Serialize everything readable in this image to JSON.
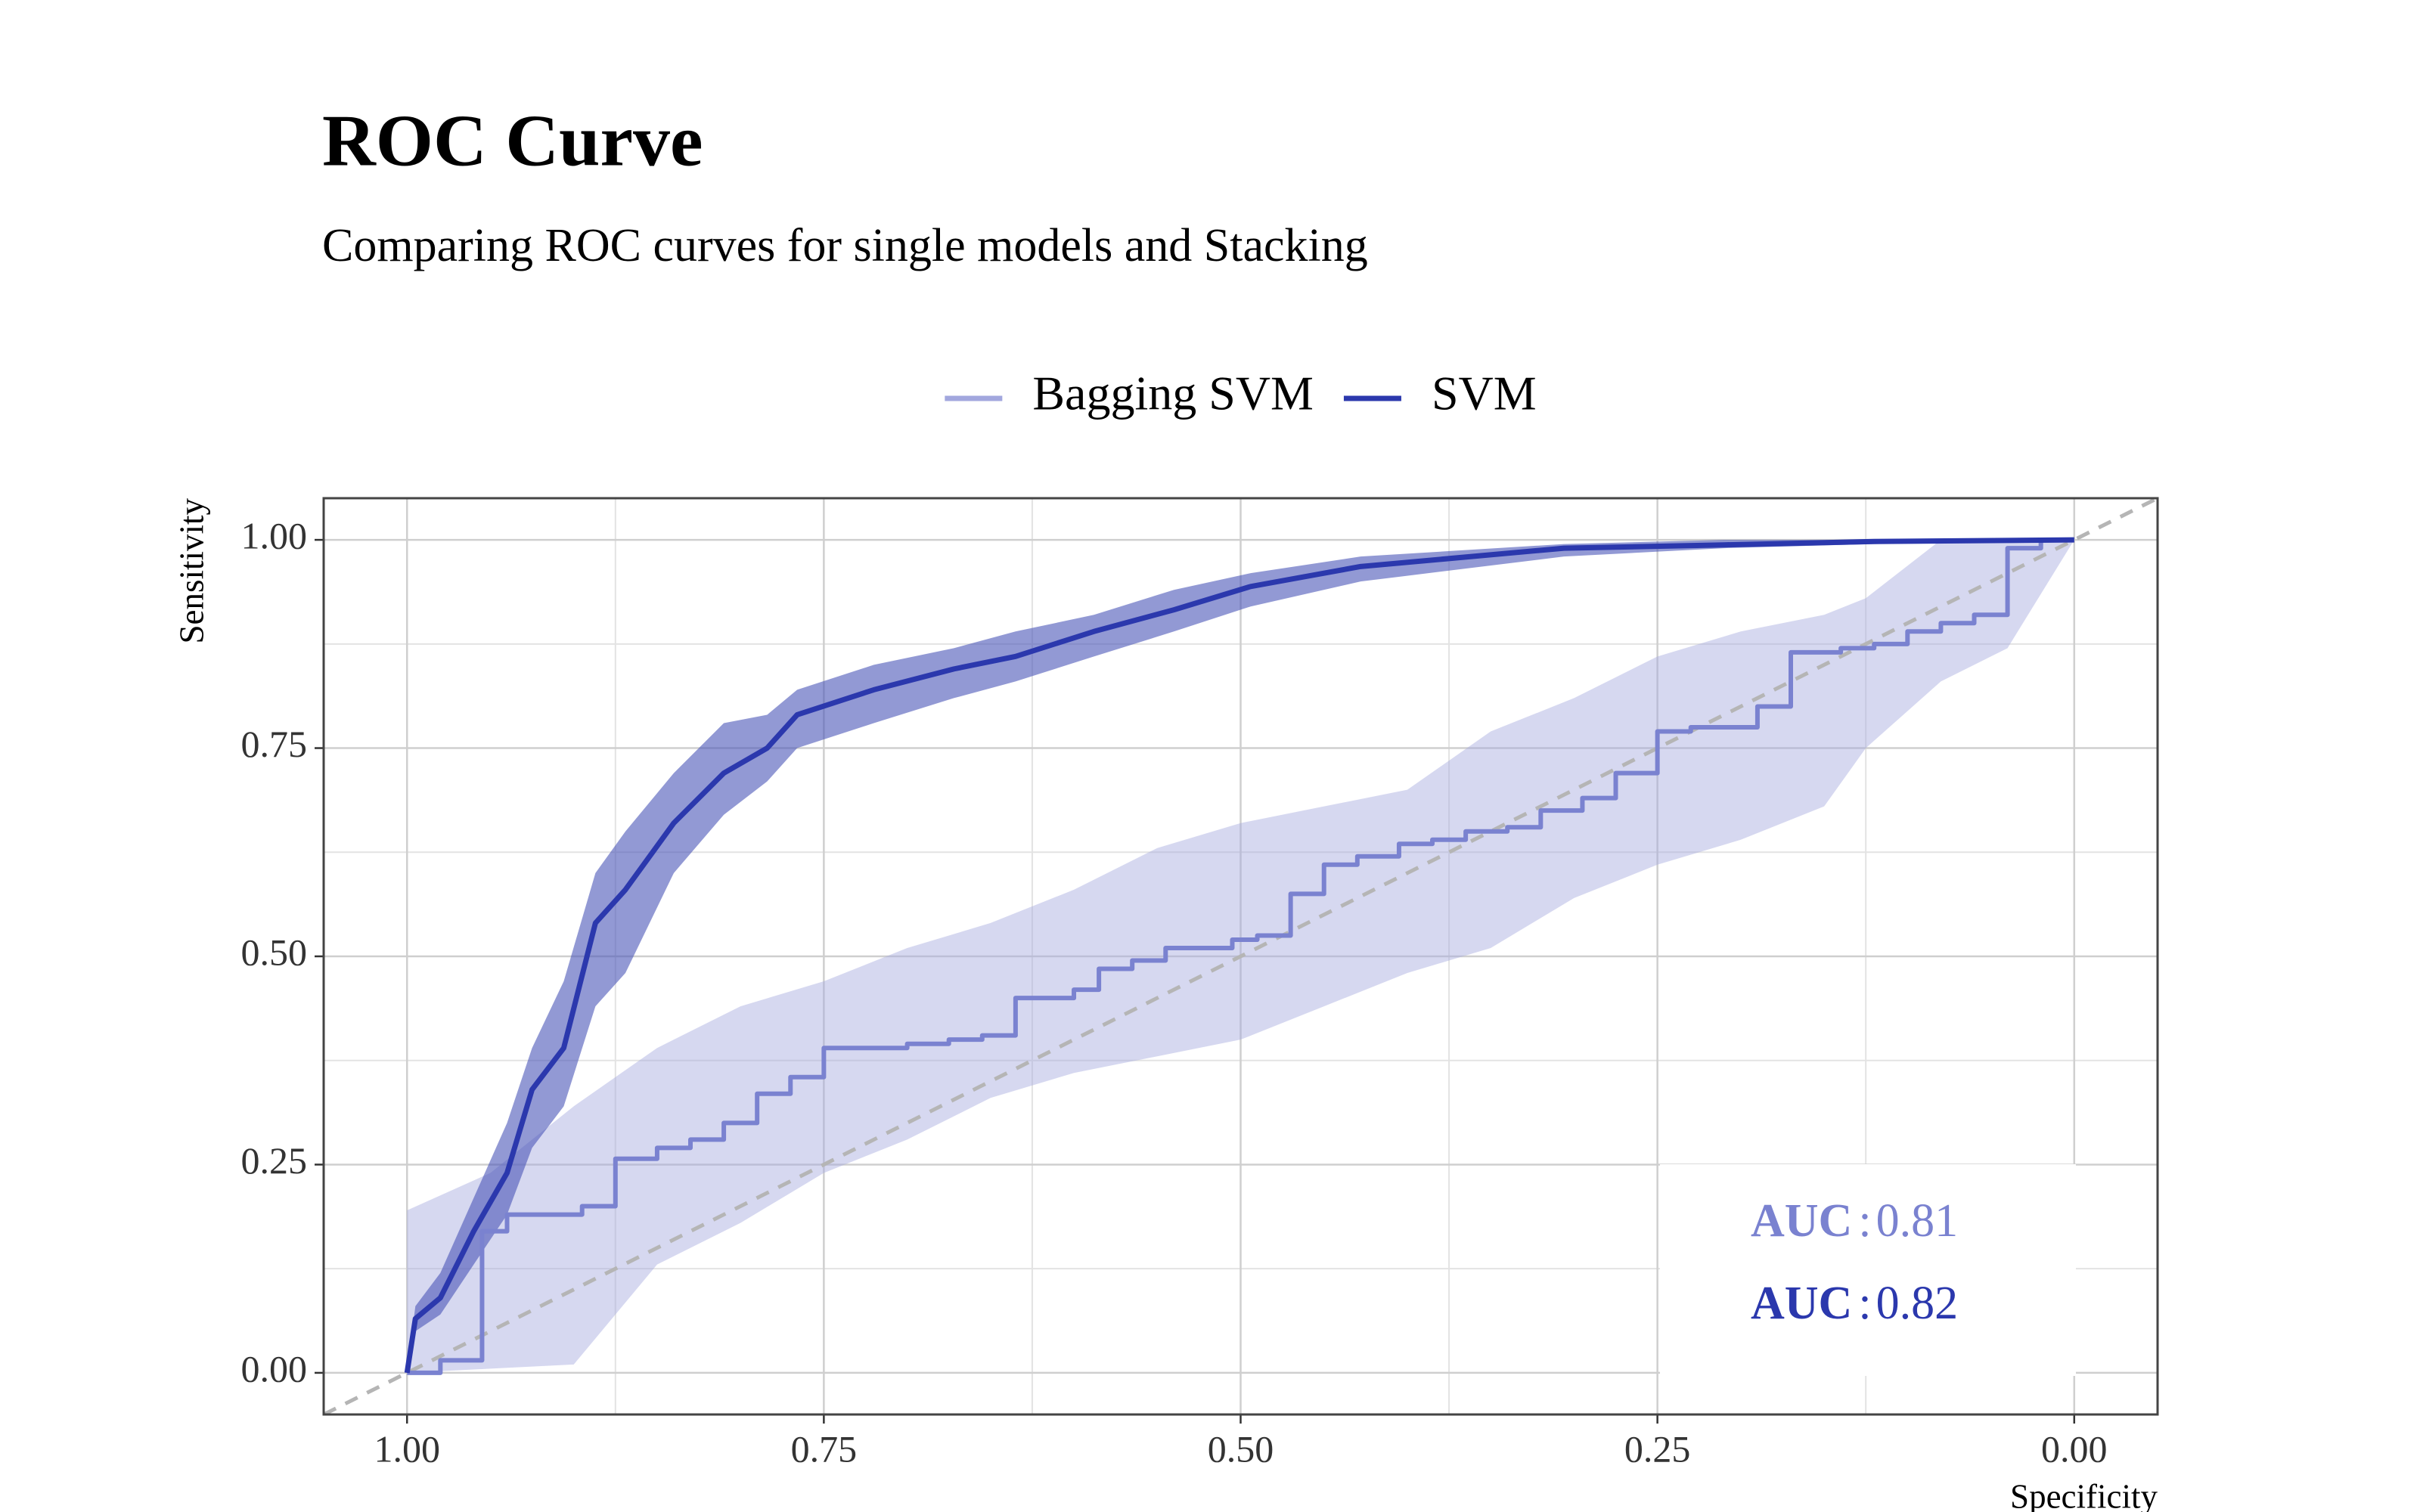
{
  "chart_data": {
    "type": "roc",
    "title": "ROC Curve",
    "subtitle": "Comparing ROC curves for single models and Stacking",
    "x_label": "Specificity",
    "y_label": "Sensitivity",
    "xlim": [
      1.05,
      -0.05
    ],
    "ylim": [
      -0.05,
      1.05
    ],
    "xticks": [
      {
        "value": 1,
        "label": "1.00"
      },
      0.75,
      {
        "value": 0.5,
        "label": "0.50"
      },
      0.25,
      {
        "value": 0,
        "label": "0.00"
      }
    ],
    "yticks": [
      {
        "value": 0,
        "label": "0.00"
      },
      0.25,
      {
        "value": 0.5,
        "label": "0.50"
      },
      0.75,
      {
        "value": 1,
        "label": "1.00"
      }
    ],
    "grid": true,
    "legend": "top",
    "auc_prefix": "AUC",
    "auc_separator": ":",
    "series": [
      {
        "name": "Bagging SVM",
        "color": "#7a82d0",
        "x": [
          1,
          0.98,
          0.98,
          0.955,
          0.955,
          0.94,
          0.94,
          0.895,
          0.895,
          0.875,
          0.875,
          0.85,
          0.85,
          0.83,
          0.83,
          0.81,
          0.81,
          0.79,
          0.79,
          0.77,
          0.77,
          0.75,
          0.75,
          0.7,
          0.7,
          0.675,
          0.675,
          0.655,
          0.655,
          0.635,
          0.635,
          0.6,
          0.6,
          0.585,
          0.585,
          0.565,
          0.565,
          0.545,
          0.545,
          0.505,
          0.505,
          0.49,
          0.49,
          0.47,
          0.47,
          0.45,
          0.45,
          0.43,
          0.43,
          0.405,
          0.405,
          0.385,
          0.385,
          0.365,
          0.365,
          0.34,
          0.34,
          0.32,
          0.32,
          0.295,
          0.295,
          0.275,
          0.275,
          0.25,
          0.25,
          0.23,
          0.23,
          0.19,
          0.19,
          0.17,
          0.17,
          0.14,
          0.14,
          0.12,
          0.12,
          0.1,
          0.1,
          0.08,
          0.08,
          0.06,
          0.06,
          0.04,
          0.04,
          0.02,
          0.02,
          0
        ],
        "values": [
          0,
          0,
          0.015,
          0.015,
          0.17,
          0.17,
          0.19,
          0.19,
          0.2,
          0.2,
          0.257,
          0.257,
          0.27,
          0.27,
          0.28,
          0.28,
          0.3,
          0.3,
          0.335,
          0.335,
          0.355,
          0.355,
          0.39,
          0.39,
          0.395,
          0.395,
          0.4,
          0.4,
          0.405,
          0.405,
          0.45,
          0.45,
          0.46,
          0.46,
          0.485,
          0.485,
          0.495,
          0.495,
          0.51,
          0.51,
          0.52,
          0.52,
          0.525,
          0.525,
          0.575,
          0.575,
          0.61,
          0.61,
          0.62,
          0.62,
          0.635,
          0.635,
          0.64,
          0.64,
          0.65,
          0.65,
          0.655,
          0.655,
          0.675,
          0.675,
          0.69,
          0.69,
          0.72,
          0.72,
          0.77,
          0.77,
          0.775,
          0.775,
          0.8,
          0.8,
          0.865,
          0.865,
          0.87,
          0.87,
          0.875,
          0.875,
          0.89,
          0.89,
          0.9,
          0.9,
          0.91,
          0.91,
          0.99,
          0.99,
          1,
          1
        ],
        "band": {
          "color": "#a3a8de",
          "x": [
            1,
            0.95,
            0.9,
            0.85,
            0.8,
            0.75,
            0.7,
            0.65,
            0.6,
            0.55,
            0.5,
            0.45,
            0.4,
            0.35,
            0.3,
            0.25,
            0.2,
            0.15,
            0.125,
            0.08,
            0.04,
            0
          ],
          "lower": [
            0,
            0.005,
            0.01,
            0.13,
            0.18,
            0.24,
            0.28,
            0.33,
            0.36,
            0.38,
            0.4,
            0.44,
            0.48,
            0.51,
            0.57,
            0.61,
            0.64,
            0.68,
            0.75,
            0.83,
            0.87,
            1
          ],
          "upper": [
            0.195,
            0.24,
            0.32,
            0.39,
            0.44,
            0.47,
            0.51,
            0.54,
            0.58,
            0.63,
            0.66,
            0.68,
            0.7,
            0.77,
            0.81,
            0.86,
            0.89,
            0.91,
            0.93,
            1,
            1,
            1
          ]
        },
        "auc": 0.81
      },
      {
        "name": "SVM",
        "color": "#2b38ad",
        "x": [
          1,
          0.995,
          0.98,
          0.96,
          0.94,
          0.925,
          0.906,
          0.887,
          0.869,
          0.84,
          0.81,
          0.784,
          0.766,
          0.72,
          0.672,
          0.635,
          0.588,
          0.54,
          0.494,
          0.428,
          0.306,
          0.21,
          0.12,
          0
        ],
        "values": [
          0,
          0.065,
          0.09,
          0.17,
          0.24,
          0.34,
          0.39,
          0.54,
          0.58,
          0.66,
          0.72,
          0.75,
          0.79,
          0.82,
          0.845,
          0.86,
          0.89,
          0.916,
          0.944,
          0.968,
          0.99,
          0.994,
          0.998,
          1
        ],
        "band": {
          "color": "#4a55b8",
          "x": [
            1,
            0.995,
            0.98,
            0.96,
            0.94,
            0.925,
            0.906,
            0.887,
            0.869,
            0.84,
            0.81,
            0.784,
            0.766,
            0.72,
            0.672,
            0.635,
            0.588,
            0.54,
            0.494,
            0.428,
            0.306,
            0.21,
            0.12,
            0
          ],
          "lower": [
            0,
            0.05,
            0.07,
            0.13,
            0.19,
            0.27,
            0.32,
            0.44,
            0.48,
            0.6,
            0.67,
            0.71,
            0.75,
            0.78,
            0.81,
            0.83,
            0.86,
            0.89,
            0.92,
            0.95,
            0.98,
            0.99,
            0.995,
            1
          ],
          "upper": [
            0,
            0.08,
            0.12,
            0.21,
            0.3,
            0.39,
            0.47,
            0.6,
            0.65,
            0.72,
            0.78,
            0.79,
            0.82,
            0.85,
            0.87,
            0.89,
            0.91,
            0.94,
            0.96,
            0.98,
            0.995,
            1,
            1,
            1
          ]
        },
        "auc": 0.82
      }
    ]
  }
}
